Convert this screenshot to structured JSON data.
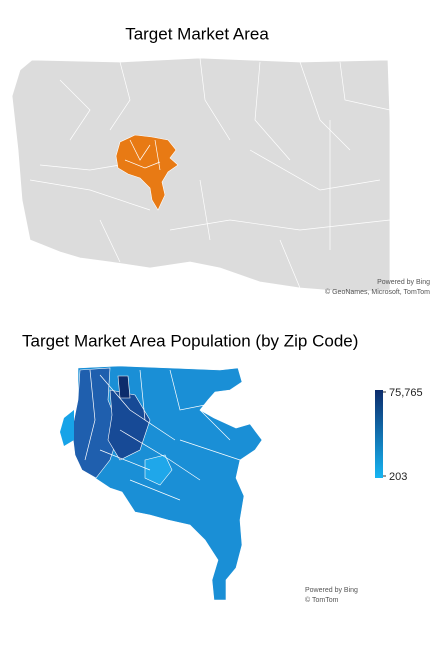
{
  "maps": [
    {
      "title": "Target Market Area",
      "attribution": [
        "Powered by Bing",
        "© GeoNames, Microsoft, TomTom"
      ]
    },
    {
      "title": "Target Market Area Population (by Zip Code)",
      "attribution": [
        "Powered by Bing",
        "© TomTom"
      ],
      "legend": {
        "max": {
          "value": 75765,
          "label": "75,765"
        },
        "min": 203
      }
    }
  ]
}
